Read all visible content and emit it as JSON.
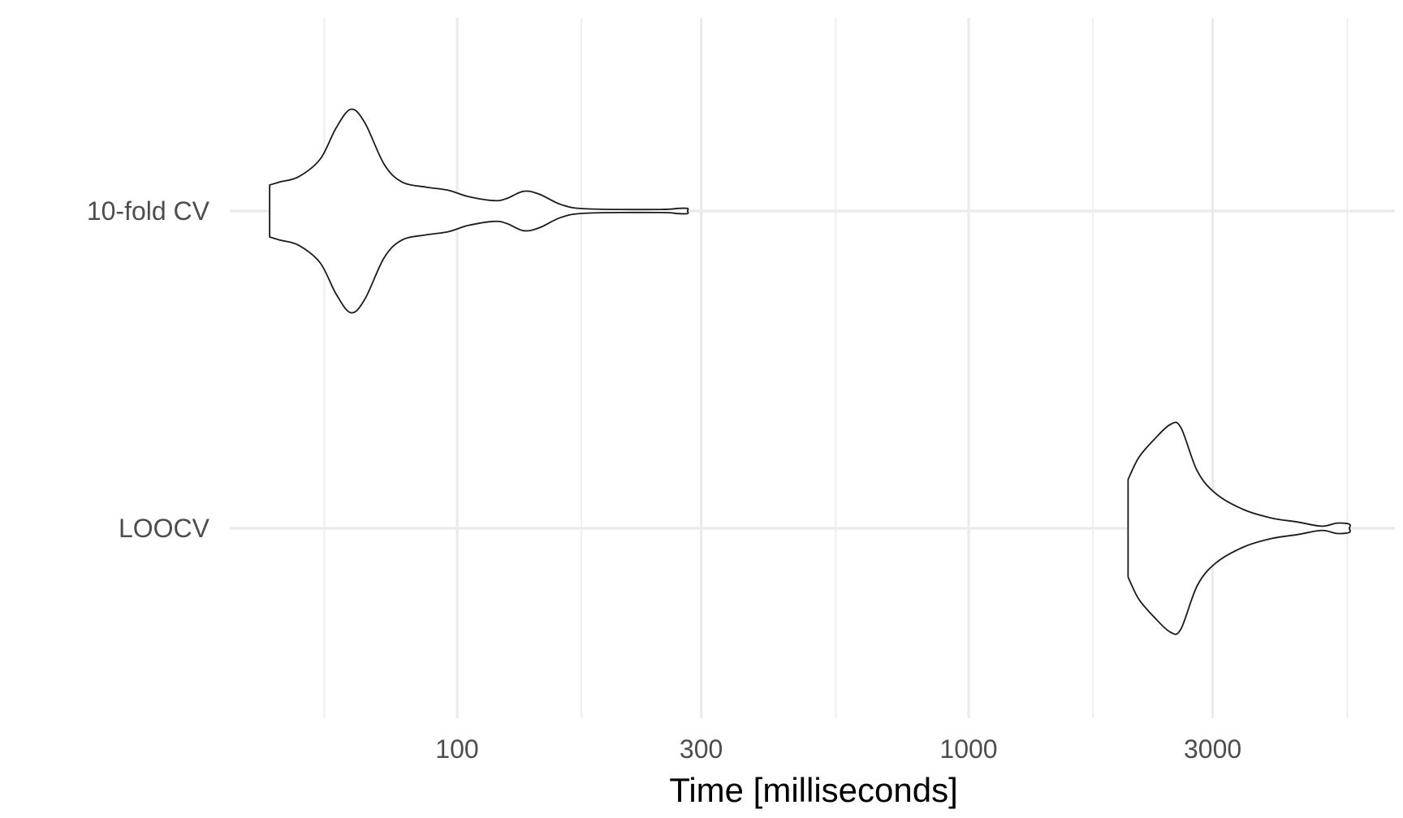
{
  "chart_data": {
    "type": "violin",
    "orientation": "horizontal",
    "title": "",
    "xlabel": "Time [milliseconds]",
    "ylabel": "",
    "x_scale": "log10",
    "xlim": [
      36,
      6000
    ],
    "x_ticks": [
      100,
      300,
      1000,
      3000
    ],
    "x_tick_labels": [
      "100",
      "300",
      "1000",
      "3000"
    ],
    "x_minor_gridlines": [
      55,
      175,
      550,
      1750,
      5500
    ],
    "categories": [
      "10-fold CV",
      "LOOCV"
    ],
    "grid": true,
    "legend": "none",
    "fill_color": "#ffffff",
    "outline_color": "#1a1a1a",
    "grid_color": "#ebebeb",
    "series": [
      {
        "category": "10-fold CV",
        "density_profile": [
          [
            43,
            0.25
          ],
          [
            45,
            0.28
          ],
          [
            49,
            0.33
          ],
          [
            54,
            0.5
          ],
          [
            58,
            0.8
          ],
          [
            62,
            0.98
          ],
          [
            66,
            0.85
          ],
          [
            72,
            0.45
          ],
          [
            78,
            0.28
          ],
          [
            87,
            0.23
          ],
          [
            96,
            0.2
          ],
          [
            105,
            0.14
          ],
          [
            118,
            0.1
          ],
          [
            125,
            0.12
          ],
          [
            135,
            0.19
          ],
          [
            145,
            0.16
          ],
          [
            160,
            0.06
          ],
          [
            180,
            0.02
          ],
          [
            250,
            0.015
          ],
          [
            270,
            0.025
          ],
          [
            282,
            0.025
          ],
          [
            282,
            0.0
          ]
        ]
      },
      {
        "category": "LOOCV",
        "density_profile": [
          [
            2050,
            0.47
          ],
          [
            2150,
            0.68
          ],
          [
            2300,
            0.85
          ],
          [
            2480,
            1.0
          ],
          [
            2600,
            0.97
          ],
          [
            2800,
            0.55
          ],
          [
            3050,
            0.33
          ],
          [
            3450,
            0.18
          ],
          [
            3900,
            0.1
          ],
          [
            4400,
            0.06
          ],
          [
            4900,
            0.02
          ],
          [
            5250,
            0.05
          ],
          [
            5550,
            0.04
          ],
          [
            5550,
            0.0
          ]
        ]
      }
    ]
  }
}
